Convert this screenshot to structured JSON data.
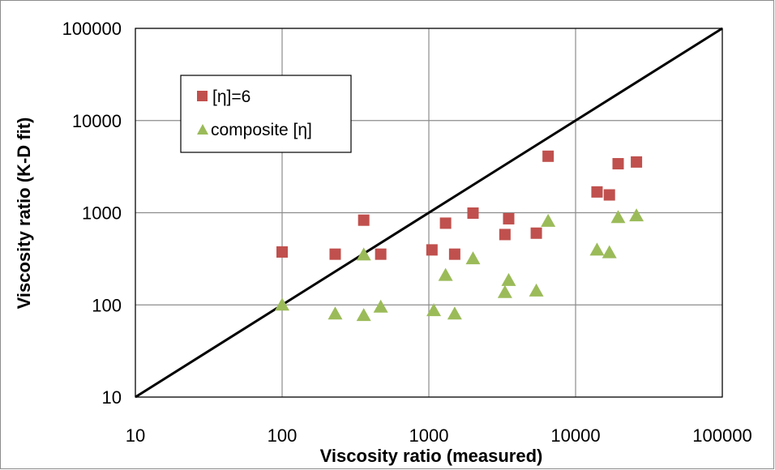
{
  "chart_data": {
    "type": "scatter",
    "xlabel": "Viscosity ratio (measured)",
    "ylabel": "Viscosity ratio (K-D fit)",
    "x_scale": "log",
    "y_scale": "log",
    "xlim": [
      10,
      100000
    ],
    "ylim": [
      10,
      100000
    ],
    "x_ticks": [
      "10",
      "100",
      "1000",
      "10000",
      "100000"
    ],
    "y_ticks": [
      "10",
      "100",
      "1000",
      "10000",
      "100000"
    ],
    "grid": true,
    "legend_position": "top-left",
    "reference_line": {
      "x": [
        10,
        100000
      ],
      "y": [
        10,
        100000
      ],
      "color": "#000000"
    },
    "series": [
      {
        "name": "[η]=6",
        "marker": "square",
        "color": "#c0504d",
        "points": [
          [
            100,
            375
          ],
          [
            230,
            355
          ],
          [
            360,
            830
          ],
          [
            470,
            355
          ],
          [
            1050,
            395
          ],
          [
            1300,
            770
          ],
          [
            1500,
            355
          ],
          [
            2000,
            990
          ],
          [
            3300,
            580
          ],
          [
            3500,
            860
          ],
          [
            5400,
            600
          ],
          [
            6500,
            4100
          ],
          [
            14000,
            1680
          ],
          [
            17000,
            1560
          ],
          [
            19500,
            3400
          ],
          [
            26000,
            3550
          ]
        ]
      },
      {
        "name": "composite [η]",
        "marker": "triangle",
        "color": "#9bbb59",
        "points": [
          [
            100,
            100
          ],
          [
            230,
            80
          ],
          [
            360,
            77
          ],
          [
            360,
            350
          ],
          [
            470,
            95
          ],
          [
            1080,
            87
          ],
          [
            1300,
            210
          ],
          [
            1500,
            80
          ],
          [
            2000,
            318
          ],
          [
            3300,
            137
          ],
          [
            3500,
            185
          ],
          [
            5400,
            142
          ],
          [
            6500,
            810
          ],
          [
            14000,
            395
          ],
          [
            17000,
            370
          ],
          [
            19500,
            890
          ],
          [
            26000,
            930
          ]
        ]
      }
    ]
  }
}
